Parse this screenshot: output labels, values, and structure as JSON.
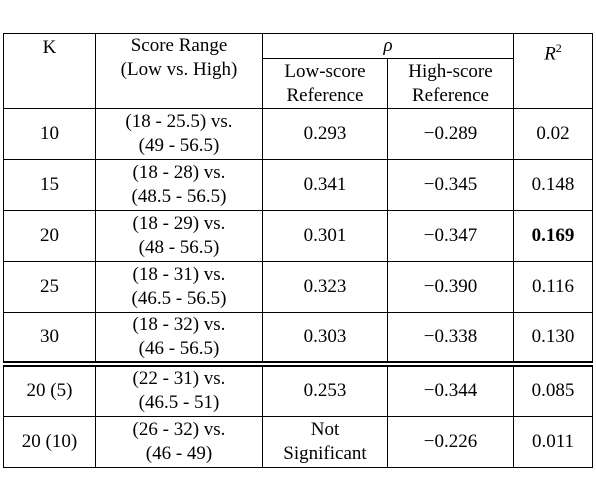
{
  "table": {
    "header": {
      "k": "K",
      "score_range": [
        "Score Range",
        "(Low vs. High)"
      ],
      "rho": "ρ",
      "low_ref": [
        "Low-score",
        "Reference"
      ],
      "high_ref": [
        "High-score",
        "Reference"
      ],
      "r2": {
        "symbol": "R",
        "exponent": "2"
      }
    },
    "groups": [
      [
        [
          "10",
          [
            "(18 - 25.5) vs.",
            "(49 - 56.5)"
          ],
          "0.293",
          "−0.289",
          "0.02"
        ],
        [
          "15",
          [
            "(18 - 28) vs.",
            "(48.5 - 56.5)"
          ],
          "0.341",
          "−0.345",
          "0.148"
        ],
        [
          "20",
          [
            "(18 - 29) vs.",
            "(48 - 56.5)"
          ],
          "0.301",
          "−0.347",
          "0.169"
        ],
        [
          "25",
          [
            "(18 - 31) vs.",
            "(46.5 - 56.5)"
          ],
          "0.323",
          "−0.390",
          "0.116"
        ],
        [
          "30",
          [
            "(18 - 32) vs.",
            "(46 - 56.5)"
          ],
          "0.303",
          "−0.338",
          "0.130"
        ]
      ],
      [
        [
          "20 (5)",
          [
            "(22 - 31) vs.",
            "(46.5 - 51)"
          ],
          "0.253",
          "−0.344",
          "0.085"
        ],
        [
          "20 (10)",
          [
            "(26 - 32) vs.",
            "(46 - 49)"
          ],
          [
            "Not",
            "Significant"
          ],
          "−0.226",
          "0.011"
        ]
      ]
    ],
    "bold_cells": [
      {
        "group": 0,
        "row": 2,
        "col": 4
      }
    ]
  }
}
